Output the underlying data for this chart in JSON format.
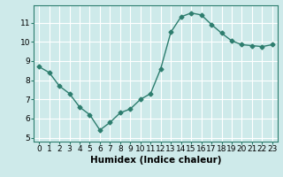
{
  "x": [
    0,
    1,
    2,
    3,
    4,
    5,
    6,
    7,
    8,
    9,
    10,
    11,
    12,
    13,
    14,
    15,
    16,
    17,
    18,
    19,
    20,
    21,
    22,
    23
  ],
  "y": [
    8.7,
    8.4,
    7.7,
    7.3,
    6.6,
    6.2,
    5.4,
    5.8,
    6.3,
    6.5,
    7.0,
    7.3,
    8.6,
    10.5,
    11.3,
    11.5,
    11.4,
    10.9,
    10.45,
    10.05,
    9.85,
    9.8,
    9.75,
    9.85
  ],
  "line_color": "#2d7d6e",
  "marker": "D",
  "marker_size": 2.5,
  "bg_color": "#ceeaea",
  "grid_color": "#ffffff",
  "xlabel": "Humidex (Indice chaleur)",
  "xlim": [
    -0.5,
    23.5
  ],
  "ylim": [
    4.8,
    11.9
  ],
  "yticks": [
    5,
    6,
    7,
    8,
    9,
    10,
    11
  ],
  "xticks": [
    0,
    1,
    2,
    3,
    4,
    5,
    6,
    7,
    8,
    9,
    10,
    11,
    12,
    13,
    14,
    15,
    16,
    17,
    18,
    19,
    20,
    21,
    22,
    23
  ],
  "xtick_labels": [
    "0",
    "1",
    "2",
    "3",
    "4",
    "5",
    "6",
    "7",
    "8",
    "9",
    "10",
    "11",
    "12",
    "13",
    "14",
    "15",
    "16",
    "17",
    "18",
    "19",
    "20",
    "21",
    "22",
    "23"
  ],
  "axis_fontsize": 7.5,
  "tick_fontsize": 6.5
}
